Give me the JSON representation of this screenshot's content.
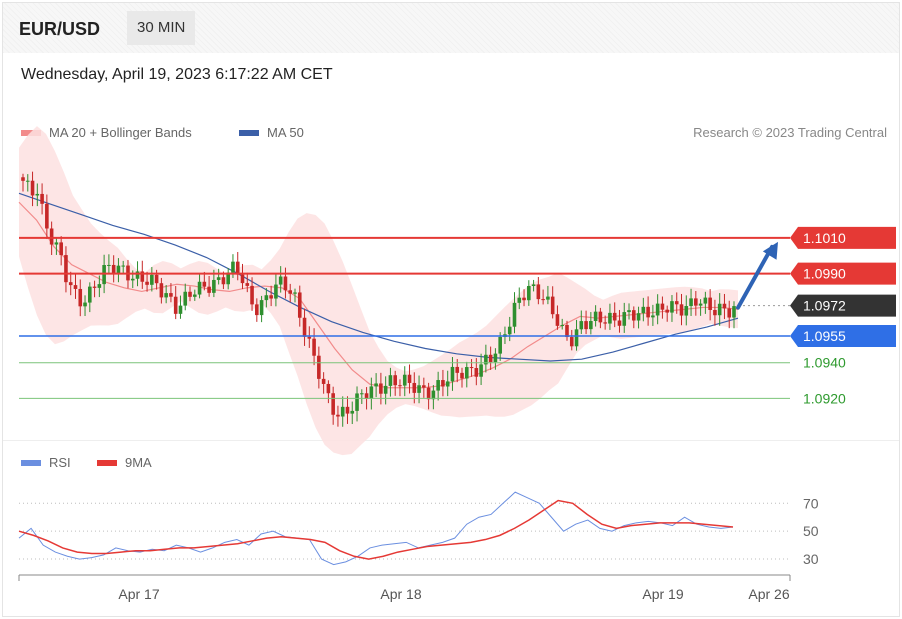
{
  "header": {
    "symbol": "EUR/USD",
    "timeframe": "30 MIN"
  },
  "datetime": "Wednesday, April 19, 2023 6:17:22 AM CET",
  "legend": {
    "ma20": {
      "label": "MA 20 + Bollinger Bands",
      "color": "#f28b8b"
    },
    "ma50": {
      "label": "MA 50",
      "color": "#3b5fa8"
    }
  },
  "credit": "Research © 2023 Trading Central",
  "rsi_legend": {
    "rsi": {
      "label": "RSI",
      "color": "#6b8fe0"
    },
    "ma9": {
      "label": "9MA",
      "color": "#e53935"
    }
  },
  "colors": {
    "resistance": "#e53935",
    "current": "#333333",
    "pivot": "#2f6fe6",
    "support": "#7cc47a",
    "support_text": "#2e9a2e",
    "bull": "#2f8f2f",
    "bear": "#c62828",
    "band": "#fde0e0",
    "arrow": "#2e63b5"
  },
  "chart_data": [
    {
      "type": "candlestick",
      "title": "EUR/USD 30 MIN",
      "ylim": [
        1.0895,
        1.1052
      ],
      "x_labels": [
        "Apr 17",
        "Apr 18",
        "Apr 19",
        "Apr 26"
      ],
      "price_levels": [
        {
          "label": "1.1010",
          "value": 1.101,
          "kind": "resistance"
        },
        {
          "label": "1.0990",
          "value": 1.099,
          "kind": "resistance"
        },
        {
          "label": "1.0972",
          "value": 1.0972,
          "kind": "current"
        },
        {
          "label": "1.0955",
          "value": 1.0955,
          "kind": "pivot"
        },
        {
          "label": "1.0940",
          "value": 1.094,
          "kind": "support"
        },
        {
          "label": "1.0920",
          "value": 1.092,
          "kind": "support"
        }
      ],
      "close_path": [
        1.104,
        1.1035,
        1.1038,
        1.102,
        1.101,
        1.1,
        1.0985,
        1.0978,
        1.0975,
        1.098,
        1.0985,
        1.099,
        1.0992,
        1.0993,
        1.0992,
        1.099,
        1.0987,
        1.0985,
        1.0983,
        1.098,
        1.0977,
        1.0972,
        1.0975,
        1.0978,
        1.098,
        1.0983,
        1.0986,
        1.0988,
        1.099,
        1.0992,
        1.0985,
        1.0975,
        1.0972,
        1.0976,
        1.098,
        1.0983,
        1.0982,
        1.0978,
        1.0965,
        1.0952,
        1.0938,
        1.0925,
        1.0915,
        1.0912,
        1.0914,
        1.0917,
        1.092,
        1.0922,
        1.0925,
        1.0928,
        1.0931,
        1.093,
        1.0928,
        1.0926,
        1.0925,
        1.0925,
        1.0926,
        1.0928,
        1.093,
        1.0933,
        1.0935,
        1.0937,
        1.0938,
        1.094,
        1.0942,
        1.0948,
        1.096,
        1.0972,
        1.0979,
        1.0981,
        1.0978,
        1.0975,
        1.0972,
        1.0965,
        1.0955,
        1.0952,
        1.0958,
        1.0962,
        1.0966,
        1.0967,
        1.0965,
        1.0962,
        1.0964,
        1.0967,
        1.0969,
        1.097,
        1.0969,
        1.0968,
        1.097,
        1.0971,
        1.0972,
        1.0974,
        1.0976,
        1.0971,
        1.0968,
        1.097,
        1.0971,
        1.0972
      ],
      "ma20_path": [
        1.103,
        1.102,
        1.1005,
        1.0995,
        1.099,
        1.0985,
        1.0982,
        1.098,
        1.0982,
        1.0984,
        1.0983,
        1.0981,
        1.098,
        1.0982,
        1.0983,
        1.0982,
        1.0976,
        1.0962,
        1.0948,
        1.0936,
        1.0928,
        1.0926,
        1.0926,
        1.0926,
        1.0927,
        1.093,
        1.0933,
        1.0937,
        1.0942,
        1.0949,
        1.0955,
        1.0961,
        1.0966,
        1.0965,
        1.0966,
        1.0967,
        1.0968,
        1.0969,
        1.097,
        1.0971,
        1.0971,
        1.097
      ],
      "ma50_path": [
        1.1035,
        1.1029,
        1.1023,
        1.1017,
        1.1012,
        1.1006,
        1.0999,
        1.099,
        1.098,
        1.0971,
        1.0963,
        1.0957,
        1.0952,
        1.0948,
        1.0945,
        1.0943,
        1.0942,
        1.0941,
        1.0942,
        1.0946,
        1.0951,
        1.0956,
        1.096,
        1.0965
      ]
    },
    {
      "type": "line",
      "title": "RSI",
      "ylim": [
        20,
        86
      ],
      "y_ticks": [
        30,
        50,
        70
      ],
      "x_labels": [
        "Apr 17",
        "Apr 18",
        "Apr 19",
        "Apr 26"
      ],
      "series": [
        {
          "name": "RSI",
          "values": [
            45,
            52,
            40,
            35,
            32,
            30,
            31,
            33,
            38,
            36,
            35,
            37,
            36,
            40,
            38,
            35,
            38,
            42,
            44,
            40,
            48,
            50,
            46,
            45,
            44,
            30,
            26,
            28,
            32,
            38,
            40,
            41,
            42,
            38,
            40,
            42,
            45,
            55,
            60,
            62,
            70,
            78,
            74,
            70,
            60,
            50,
            55,
            58,
            52,
            50,
            54,
            56,
            57,
            56,
            54,
            60,
            55,
            53,
            52,
            53
          ]
        },
        {
          "name": "9MA",
          "values": [
            50,
            47,
            43,
            38,
            35,
            34,
            34,
            35,
            36,
            36,
            37,
            38,
            38,
            39,
            40,
            41,
            43,
            45,
            46,
            45,
            44,
            42,
            36,
            32,
            30,
            32,
            35,
            37,
            39,
            40,
            41,
            42,
            44,
            47,
            52,
            58,
            65,
            72,
            70,
            62,
            55,
            52,
            54,
            55,
            56,
            56,
            56,
            55,
            54,
            53
          ]
        }
      ]
    }
  ]
}
